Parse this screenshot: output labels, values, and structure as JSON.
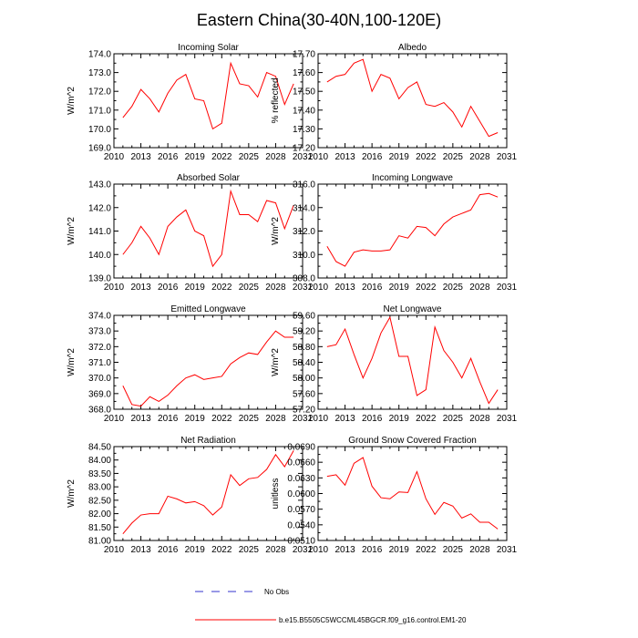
{
  "title": "Eastern China(30-40N,100-120E)",
  "legend": {
    "obs_label": "No Obs",
    "model_label": "b.e15.B5505C5WCCML45BGCR.f09_g16.control.EM1-20",
    "model_color": "#ff0000",
    "obs_color": "#3333cc"
  },
  "chart_data": [
    {
      "type": "line",
      "panel": "top-left",
      "title": "Incoming Solar",
      "ylabel": "W/m^2",
      "xlim": [
        2010,
        2031
      ],
      "xticks": [
        2010,
        2013,
        2016,
        2019,
        2022,
        2025,
        2028,
        2031
      ],
      "ylim": [
        169.0,
        174.0
      ],
      "yticks": [
        "169.0",
        "170.0",
        "171.0",
        "172.0",
        "173.0",
        "174.0"
      ],
      "x": [
        2011,
        2012,
        2013,
        2014,
        2015,
        2016,
        2017,
        2018,
        2019,
        2020,
        2021,
        2022,
        2023,
        2024,
        2025,
        2026,
        2027,
        2028,
        2029,
        2030
      ],
      "values": [
        170.6,
        171.2,
        172.1,
        171.6,
        170.9,
        171.9,
        172.6,
        172.9,
        171.6,
        171.5,
        170.0,
        170.3,
        173.5,
        172.4,
        172.3,
        171.7,
        173.0,
        172.8,
        171.3,
        172.4
      ]
    },
    {
      "type": "line",
      "panel": "top-right",
      "title": "Albedo",
      "ylabel": "% reflected",
      "xlim": [
        2010,
        2031
      ],
      "xticks": [
        2010,
        2013,
        2016,
        2019,
        2022,
        2025,
        2028,
        2031
      ],
      "ylim": [
        17.2,
        17.7
      ],
      "yticks": [
        "17.20",
        "17.30",
        "17.40",
        "17.50",
        "17.60",
        "17.70"
      ],
      "x": [
        2011,
        2012,
        2013,
        2014,
        2015,
        2016,
        2017,
        2018,
        2019,
        2020,
        2021,
        2022,
        2023,
        2024,
        2025,
        2026,
        2027,
        2028,
        2029,
        2030
      ],
      "values": [
        17.55,
        17.58,
        17.59,
        17.65,
        17.67,
        17.5,
        17.59,
        17.57,
        17.46,
        17.52,
        17.55,
        17.43,
        17.42,
        17.44,
        17.39,
        17.31,
        17.42,
        17.34,
        17.26,
        17.28
      ]
    },
    {
      "type": "line",
      "panel": "row2-left",
      "title": "Absorbed Solar",
      "ylabel": "W/m^2",
      "xlim": [
        2010,
        2031
      ],
      "xticks": [
        2010,
        2013,
        2016,
        2019,
        2022,
        2025,
        2028,
        2031
      ],
      "ylim": [
        139.0,
        143.0
      ],
      "yticks": [
        "139.0",
        "140.0",
        "141.0",
        "142.0",
        "143.0"
      ],
      "x": [
        2011,
        2012,
        2013,
        2014,
        2015,
        2016,
        2017,
        2018,
        2019,
        2020,
        2021,
        2022,
        2023,
        2024,
        2025,
        2026,
        2027,
        2028,
        2029,
        2030
      ],
      "values": [
        140.0,
        140.5,
        141.2,
        140.7,
        140.0,
        141.2,
        141.6,
        141.9,
        141.0,
        140.8,
        139.5,
        140.0,
        142.7,
        141.7,
        141.7,
        141.4,
        142.3,
        142.2,
        141.1,
        142.1
      ]
    },
    {
      "type": "line",
      "panel": "row2-right",
      "title": "Incoming Longwave",
      "ylabel": "W/m^2",
      "xlim": [
        2010,
        2031
      ],
      "xticks": [
        2010,
        2013,
        2016,
        2019,
        2022,
        2025,
        2028,
        2031
      ],
      "ylim": [
        308.0,
        316.0
      ],
      "yticks": [
        "308.0",
        "310.0",
        "312.0",
        "314.0",
        "316.0"
      ],
      "x": [
        2011,
        2012,
        2013,
        2014,
        2015,
        2016,
        2017,
        2018,
        2019,
        2020,
        2021,
        2022,
        2023,
        2024,
        2025,
        2026,
        2027,
        2028,
        2029,
        2030
      ],
      "values": [
        310.7,
        309.4,
        309.0,
        310.2,
        310.4,
        310.3,
        310.3,
        310.4,
        311.6,
        311.4,
        312.4,
        312.3,
        311.6,
        312.6,
        313.2,
        313.5,
        313.8,
        315.1,
        315.2,
        314.9
      ]
    },
    {
      "type": "line",
      "panel": "row3-left",
      "title": "Emitted Longwave",
      "ylabel": "W/m^2",
      "xlim": [
        2010,
        2031
      ],
      "xticks": [
        2010,
        2013,
        2016,
        2019,
        2022,
        2025,
        2028,
        2031
      ],
      "ylim": [
        368.0,
        374.0
      ],
      "yticks": [
        "368.0",
        "369.0",
        "370.0",
        "371.0",
        "372.0",
        "373.0",
        "374.0"
      ],
      "x": [
        2011,
        2012,
        2013,
        2014,
        2015,
        2016,
        2017,
        2018,
        2019,
        2020,
        2021,
        2022,
        2023,
        2024,
        2025,
        2026,
        2027,
        2028,
        2029,
        2030
      ],
      "values": [
        369.5,
        368.3,
        368.2,
        368.8,
        368.5,
        368.9,
        369.5,
        370.0,
        370.2,
        369.9,
        370.0,
        370.1,
        370.9,
        371.3,
        371.6,
        371.5,
        372.3,
        373.0,
        372.6,
        372.6
      ]
    },
    {
      "type": "line",
      "panel": "row3-right",
      "title": "Net Longwave",
      "ylabel": "W/m^2",
      "xlim": [
        2010,
        2031
      ],
      "xticks": [
        2010,
        2013,
        2016,
        2019,
        2022,
        2025,
        2028,
        2031
      ],
      "ylim": [
        57.2,
        59.6
      ],
      "yticks": [
        "57.20",
        "57.60",
        "58.00",
        "58.40",
        "58.80",
        "59.20",
        "59.60"
      ],
      "x": [
        2011,
        2012,
        2013,
        2014,
        2015,
        2016,
        2017,
        2018,
        2019,
        2020,
        2021,
        2022,
        2023,
        2024,
        2025,
        2026,
        2027,
        2028,
        2029,
        2030
      ],
      "values": [
        58.8,
        58.85,
        59.25,
        58.6,
        58.0,
        58.5,
        59.15,
        59.55,
        58.55,
        58.55,
        57.55,
        57.7,
        59.3,
        58.7,
        58.4,
        58.0,
        58.5,
        57.9,
        57.35,
        57.7
      ]
    },
    {
      "type": "line",
      "panel": "bottom-left",
      "title": "Net Radiation",
      "ylabel": "W/m^2",
      "xlim": [
        2010,
        2031
      ],
      "xticks": [
        2010,
        2013,
        2016,
        2019,
        2022,
        2025,
        2028,
        2031
      ],
      "ylim": [
        81.0,
        84.5
      ],
      "yticks": [
        "81.00",
        "81.50",
        "82.00",
        "82.50",
        "83.00",
        "83.50",
        "84.00",
        "84.50"
      ],
      "x": [
        2011,
        2012,
        2013,
        2014,
        2015,
        2016,
        2017,
        2018,
        2019,
        2020,
        2021,
        2022,
        2023,
        2024,
        2025,
        2026,
        2027,
        2028,
        2029,
        2030
      ],
      "values": [
        81.25,
        81.65,
        81.95,
        82.0,
        82.0,
        82.65,
        82.55,
        82.4,
        82.45,
        82.3,
        81.95,
        82.25,
        83.45,
        83.05,
        83.3,
        83.35,
        83.65,
        84.2,
        83.75,
        84.35
      ]
    },
    {
      "type": "line",
      "panel": "bottom-right",
      "title": "Ground Snow Covered Fraction",
      "ylabel": "unitless",
      "xlim": [
        2010,
        2031
      ],
      "xticks": [
        2010,
        2013,
        2016,
        2019,
        2022,
        2025,
        2028,
        2031
      ],
      "ylim": [
        0.051,
        0.069
      ],
      "yticks": [
        "0.0510",
        "0.0540",
        "0.0570",
        "0.0600",
        "0.0630",
        "0.0660",
        "0.0690"
      ],
      "x": [
        2011,
        2012,
        2013,
        2014,
        2015,
        2016,
        2017,
        2018,
        2019,
        2020,
        2021,
        2022,
        2023,
        2024,
        2025,
        2026,
        2027,
        2028,
        2029,
        2030
      ],
      "values": [
        0.0633,
        0.0636,
        0.0616,
        0.0658,
        0.0669,
        0.0614,
        0.0592,
        0.059,
        0.0603,
        0.0602,
        0.0642,
        0.059,
        0.056,
        0.0583,
        0.0576,
        0.0553,
        0.0561,
        0.0545,
        0.0545,
        0.0532
      ]
    }
  ]
}
